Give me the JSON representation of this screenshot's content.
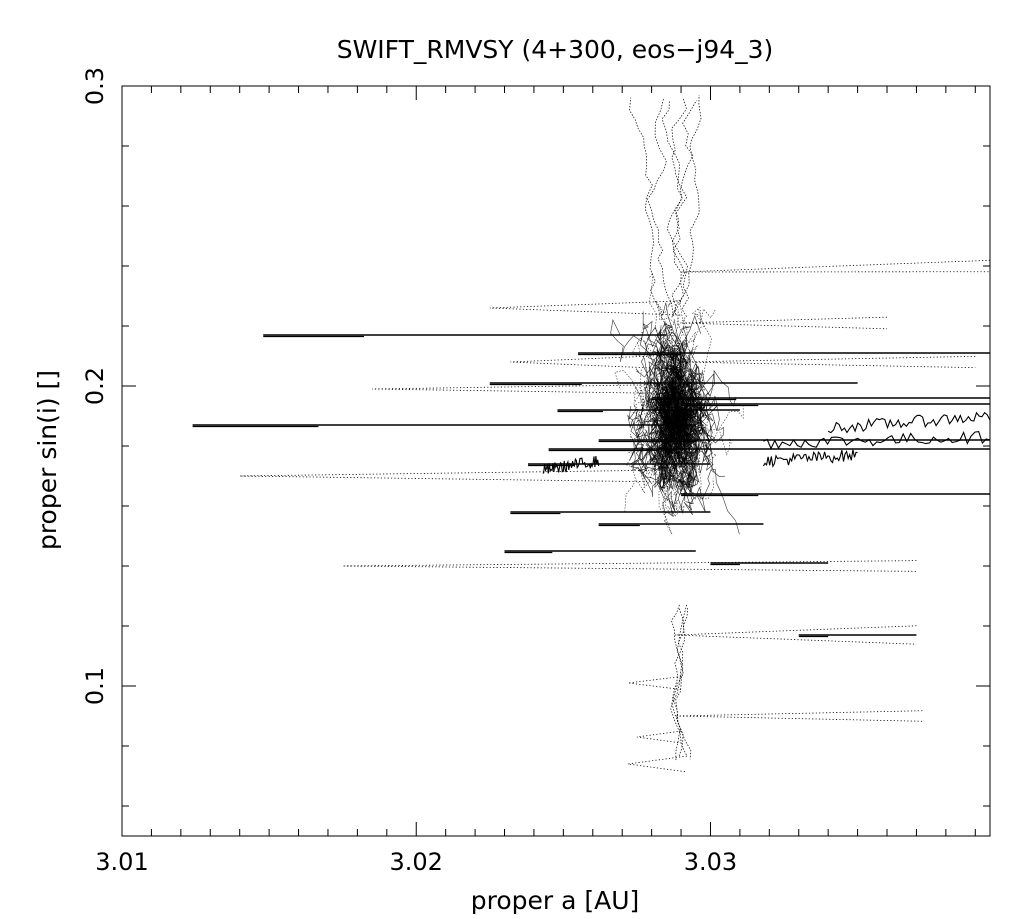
{
  "chart_data": {
    "type": "scatter",
    "title": "SWIFT_RMVSY (4+300, eos−j94_3)",
    "xlabel": "proper a [AU]",
    "ylabel": "proper sin(i) []",
    "xlim": [
      3.01,
      3.0395
    ],
    "ylim": [
      0.05,
      0.3
    ],
    "x_ticks": [
      {
        "value": 3.01,
        "label": "3.01"
      },
      {
        "value": 3.02,
        "label": "3.02"
      },
      {
        "value": 3.03,
        "label": "3.03"
      }
    ],
    "y_ticks": [
      {
        "value": 0.1,
        "label": "0.1"
      },
      {
        "value": 0.2,
        "label": "0.2"
      },
      {
        "value": 0.3,
        "label": "0.3"
      }
    ],
    "grid": false,
    "legend": "none",
    "center": {
      "a": 3.0288,
      "sini": 0.19
    },
    "series": [
      {
        "style": "solid",
        "tracks": [
          {
            "a": [
              3.0124,
              3.0295
            ],
            "sini": [
              0.187,
              0.187
            ]
          },
          {
            "a": [
              3.0148,
              3.0285
            ],
            "sini": [
              0.217,
              0.217
            ]
          },
          {
            "a": [
              3.0255,
              3.0395
            ],
            "sini": [
              0.211,
              0.211
            ]
          },
          {
            "a": [
              3.0225,
              3.035
            ],
            "sini": [
              0.201,
              0.201
            ]
          },
          {
            "a": [
              3.028,
              3.0395
            ],
            "sini": [
              0.196,
              0.196
            ]
          },
          {
            "a": [
              3.029,
              3.0395
            ],
            "sini": [
              0.194,
              0.194
            ]
          },
          {
            "a": [
              3.0248,
              3.031
            ],
            "sini": [
              0.192,
              0.192
            ]
          },
          {
            "a": [
              3.0262,
              3.0395
            ],
            "sini": [
              0.182,
              0.182
            ]
          },
          {
            "a": [
              3.0245,
              3.0395
            ],
            "sini": [
              0.179,
              0.179
            ]
          },
          {
            "a": [
              3.0238,
              3.03
            ],
            "sini": [
              0.174,
              0.174
            ]
          },
          {
            "a": [
              3.029,
              3.0395
            ],
            "sini": [
              0.164,
              0.164
            ]
          },
          {
            "a": [
              3.0232,
              3.03
            ],
            "sini": [
              0.158,
              0.158
            ]
          },
          {
            "a": [
              3.0262,
              3.0318
            ],
            "sini": [
              0.154,
              0.154
            ]
          },
          {
            "a": [
              3.023,
              3.0295
            ],
            "sini": [
              0.145,
              0.145
            ]
          },
          {
            "a": [
              3.03,
              3.034
            ],
            "sini": [
              0.141,
              0.141
            ]
          },
          {
            "a": [
              3.033,
              3.037
            ],
            "sini": [
              0.117,
              0.117
            ]
          }
        ],
        "wiggles": [
          {
            "a": [
              3.0318,
              3.0395
            ],
            "sini": [
              0.181,
              0.183
            ]
          },
          {
            "a": [
              3.0318,
              3.035
            ],
            "sini": [
              0.175,
              0.177
            ]
          },
          {
            "a": [
              3.034,
              3.0395
            ],
            "sini": [
              0.186,
              0.19
            ]
          },
          {
            "a": [
              3.0243,
              3.0262
            ],
            "sini": [
              0.172,
              0.175
            ]
          }
        ]
      },
      {
        "style": "dotted",
        "tracks": [
          {
            "a": [
              3.014,
              3.0285
            ],
            "sini": [
              0.17,
              0.17
            ]
          },
          {
            "a": [
              3.0185,
              3.0295
            ],
            "sini": [
              0.199,
              0.199
            ]
          },
          {
            "a": [
              3.0175,
              3.037
            ],
            "sini": [
              0.14,
              0.14
            ]
          },
          {
            "a": [
              3.029,
              3.0395
            ],
            "sini": [
              0.238,
              0.24
            ]
          },
          {
            "a": [
              3.029,
              3.039
            ],
            "sini": [
              0.208,
              0.208
            ]
          },
          {
            "a": [
              3.029,
              3.036
            ],
            "sini": [
              0.221,
              0.221
            ]
          },
          {
            "a": [
              3.0288,
              3.0372
            ],
            "sini": [
              0.09,
              0.09
            ]
          },
          {
            "a": [
              3.0288,
              3.037
            ],
            "sini": [
              0.117,
              0.117
            ]
          },
          {
            "a": [
              3.0225,
              3.029
            ],
            "sini": [
              0.226,
              0.226
            ]
          },
          {
            "a": [
              3.0232,
              3.029
            ],
            "sini": [
              0.208,
              0.208
            ]
          },
          {
            "a": [
              3.0272,
              3.029
            ],
            "sini": [
              0.101,
              0.101
            ]
          },
          {
            "a": [
              3.0272,
              3.0292
            ],
            "sini": [
              0.074,
              0.074
            ]
          },
          {
            "a": [
              3.0275,
              3.029
            ],
            "sini": [
              0.083,
              0.083
            ]
          }
        ]
      }
    ]
  }
}
